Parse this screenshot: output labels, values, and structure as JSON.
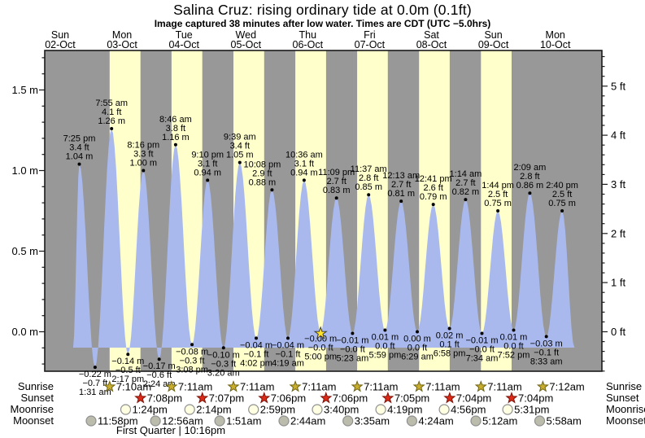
{
  "title": "Salina Cruz: rising  ordinary tide at 0.0m (0.1ft)",
  "subtitle": "Image captured 38 minutes after low water. Times are CDT (UTC −5.0hrs)",
  "row_labels": {
    "sunrise": "Sunrise",
    "sunset": "Sunset",
    "moonrise": "Moonrise",
    "moonset": "Moonset"
  },
  "moon_phase_note": "First Quarter | 10:16pm",
  "colors": {
    "night_band": "#989898",
    "day_band": "#ffffcc",
    "tide_fill": "#a9b9ee",
    "day_label": "#e84141",
    "frame": "#1a1a1a",
    "sunrise_star": "#c9ae2e",
    "sunrise_star_stroke": "#6f6414",
    "sunset_star": "#dd2a16",
    "sunset_star_stroke": "#7c150c",
    "moonrise_fill": "#ffffe2",
    "moonrise_stroke": "#8f8f8f",
    "moonset_fill": "#bcbcac",
    "moonset_stroke": "#8f8f8f",
    "marker_fill": "#ffe12b",
    "marker_stroke": "#3a3a3a"
  },
  "chart_data": {
    "type": "area",
    "title": "Salina Cruz: rising  ordinary tide at 0.0m (0.1ft)",
    "subtitle": "Image captured 38 minutes after low water. Times are CDT (UTC −5.0hrs)",
    "ylabel_left_unit": "m",
    "ylabel_right_unit": "ft",
    "ylim_m": [
      -0.25,
      1.75
    ],
    "grid": false,
    "days": [
      {
        "name": "Sun",
        "date": "02-Oct",
        "noon_t": 12
      },
      {
        "name": "Mon",
        "date": "03-Oct",
        "noon_t": 36
      },
      {
        "name": "Tue",
        "date": "04-Oct",
        "noon_t": 60
      },
      {
        "name": "Wed",
        "date": "05-Oct",
        "noon_t": 84
      },
      {
        "name": "Thu",
        "date": "06-Oct",
        "noon_t": 108
      },
      {
        "name": "Fri",
        "date": "07-Oct",
        "noon_t": 132
      },
      {
        "name": "Sat",
        "date": "08-Oct",
        "noon_t": 156
      },
      {
        "name": "Sun",
        "date": "09-Oct",
        "noon_t": 180
      },
      {
        "name": "Mon",
        "date": "10-Oct",
        "noon_t": 204
      }
    ],
    "y_axis_left": [
      {
        "v": 0.0,
        "label": "0.0 m"
      },
      {
        "v": 0.5,
        "label": "0.5 m"
      },
      {
        "v": 1.0,
        "label": "1.0 m"
      },
      {
        "v": 1.5,
        "label": "1.5 m"
      }
    ],
    "y_axis_right": [
      {
        "ft": 0,
        "label": "0 ft"
      },
      {
        "ft": 1,
        "label": "1 ft"
      },
      {
        "ft": 2,
        "label": "2 ft"
      },
      {
        "ft": 3,
        "label": "3 ft"
      },
      {
        "ft": 4,
        "label": "4 ft"
      },
      {
        "ft": 5,
        "label": "5 ft"
      }
    ],
    "tide_events": [
      {
        "kind": "high",
        "time": "7:25 pm",
        "ft": "3.4 ft",
        "m": "1.04 m",
        "v": 1.04,
        "t": 19.42
      },
      {
        "kind": "low",
        "time": "1:31 am",
        "ft": "−0.7 ft",
        "m": "−0.22 m",
        "v": -0.22,
        "t": 25.52
      },
      {
        "kind": "high",
        "time": "7:55 am",
        "ft": "4.1 ft",
        "m": "1.26 m",
        "v": 1.26,
        "t": 31.92
      },
      {
        "kind": "low",
        "time": "2:17 pm",
        "ft": "−0.5 ft",
        "m": "−0.14 m",
        "v": -0.14,
        "t": 38.28
      },
      {
        "kind": "high",
        "time": "8:16 pm",
        "ft": "3.3 ft",
        "m": "1.00 m",
        "v": 1.0,
        "t": 44.27
      },
      {
        "kind": "low",
        "time": "2:24 am",
        "ft": "−0.6 ft",
        "m": "−0.17 m",
        "v": -0.17,
        "t": 50.4
      },
      {
        "kind": "high",
        "time": "8:46 am",
        "ft": "3.8 ft",
        "m": "1.16 m",
        "v": 1.16,
        "t": 56.77
      },
      {
        "kind": "low",
        "time": "3:08 pm",
        "ft": "−0.3 ft",
        "m": "−0.08 m",
        "v": -0.08,
        "t": 63.13
      },
      {
        "kind": "high",
        "time": "9:10 pm",
        "ft": "3.1 ft",
        "m": "0.94 m",
        "v": 0.94,
        "t": 69.17
      },
      {
        "kind": "low",
        "time": "3:20 am",
        "ft": "−0.3 ft",
        "m": "−0.10 m",
        "v": -0.1,
        "t": 75.33
      },
      {
        "kind": "high",
        "time": "9:39 am",
        "ft": "3.4 ft",
        "m": "1.05 m",
        "v": 1.05,
        "t": 81.65
      },
      {
        "kind": "low",
        "time": "4:02 pm",
        "ft": "−0.1 ft",
        "m": "−0.04 m",
        "v": -0.04,
        "t": 88.03
      },
      {
        "kind": "high",
        "time": "10:08 pm",
        "ft": "2.9 ft",
        "m": "0.88 m",
        "v": 0.88,
        "t": 94.13,
        "ldx": -12
      },
      {
        "kind": "low",
        "time": "4:19 am",
        "ft": "−0.1 ft",
        "m": "−0.04 m",
        "v": -0.04,
        "t": 100.32
      },
      {
        "kind": "high",
        "time": "10:36 am",
        "ft": "3.1 ft",
        "m": "0.94 m",
        "v": 0.94,
        "t": 106.6
      },
      {
        "kind": "low",
        "time": "5:00 pm",
        "ft": "−0.0 ft",
        "m": "−0.00 m",
        "v": 0.0,
        "t": 113.0,
        "current": true
      },
      {
        "kind": "high",
        "time": "11:09 pm",
        "ft": "2.7 ft",
        "m": "0.83 m",
        "v": 0.83,
        "t": 119.15
      },
      {
        "kind": "low",
        "time": "5:23 am",
        "ft": "−0.0 ft",
        "m": "−0.01 m",
        "v": -0.01,
        "t": 125.38
      },
      {
        "kind": "high",
        "time": "11:37 am",
        "ft": "2.8 ft",
        "m": "0.85 m",
        "v": 0.85,
        "t": 131.62
      },
      {
        "kind": "low",
        "time": "5:59 pm",
        "ft": "0.0 ft",
        "m": "0.01 m",
        "v": 0.01,
        "t": 137.98
      },
      {
        "kind": "high",
        "time": "12:13 am",
        "ft": "2.7 ft",
        "m": "0.81 m",
        "v": 0.81,
        "t": 144.22
      },
      {
        "kind": "low",
        "time": "6:29 am",
        "ft": "0.0 ft",
        "m": "0.00 m",
        "v": 0.0,
        "t": 150.48
      },
      {
        "kind": "high",
        "time": "12:41 pm",
        "ft": "2.6 ft",
        "m": "0.79 m",
        "v": 0.79,
        "t": 156.68
      },
      {
        "kind": "low",
        "time": "6:58 pm",
        "ft": "0.1 ft",
        "m": "0.02 m",
        "v": 0.02,
        "t": 162.97
      },
      {
        "kind": "high",
        "time": "1:14 am",
        "ft": "2.7 ft",
        "m": "0.82 m",
        "v": 0.82,
        "t": 169.23
      },
      {
        "kind": "low",
        "time": "7:34 am",
        "ft": "−0.0 ft",
        "m": "−0.01 m",
        "v": -0.01,
        "t": 175.57
      },
      {
        "kind": "high",
        "time": "1:44 pm",
        "ft": "2.5 ft",
        "m": "0.75 m",
        "v": 0.75,
        "t": 181.73
      },
      {
        "kind": "low",
        "time": "7:52 pm",
        "ft": "0.0 ft",
        "m": "0.01 m",
        "v": 0.01,
        "t": 187.87
      },
      {
        "kind": "high",
        "time": "2:09 am",
        "ft": "2.8 ft",
        "m": "0.86 m",
        "v": 0.86,
        "t": 194.15
      },
      {
        "kind": "low",
        "time": "8:33 am",
        "ft": "−0.1 ft",
        "m": "−0.03 m",
        "v": -0.03,
        "t": 200.55
      },
      {
        "kind": "high",
        "time": "2:40 pm",
        "ft": "2.5 ft",
        "m": "0.75 m",
        "v": 0.75,
        "t": 206.67
      }
    ],
    "curve_edges": {
      "start_t": 17.0,
      "start_v": -0.1,
      "end_t": 211.5,
      "end_v": -0.1
    },
    "sun_moon": {
      "sunrise": [
        {
          "label": "7:10am",
          "t": 31.17
        },
        {
          "label": "7:11am",
          "t": 55.18
        },
        {
          "label": "7:11am",
          "t": 79.18
        },
        {
          "label": "7:11am",
          "t": 103.18
        },
        {
          "label": "7:11am",
          "t": 127.18
        },
        {
          "label": "7:11am",
          "t": 151.18
        },
        {
          "label": "7:11am",
          "t": 175.18
        },
        {
          "label": "7:12am",
          "t": 199.2
        }
      ],
      "sunset": [
        {
          "label": "7:08pm",
          "t": 43.13
        },
        {
          "label": "7:07pm",
          "t": 67.12
        },
        {
          "label": "7:06pm",
          "t": 91.1
        },
        {
          "label": "7:06pm",
          "t": 115.1
        },
        {
          "label": "7:05pm",
          "t": 139.08
        },
        {
          "label": "7:04pm",
          "t": 163.07
        },
        {
          "label": "7:04pm",
          "t": 187.07
        }
      ],
      "moonrise": [
        {
          "label": "1:24pm",
          "t": 37.4
        },
        {
          "label": "2:14pm",
          "t": 62.23
        },
        {
          "label": "2:59pm",
          "t": 86.98
        },
        {
          "label": "3:40pm",
          "t": 111.67
        },
        {
          "label": "4:19pm",
          "t": 136.32
        },
        {
          "label": "4:56pm",
          "t": 160.93
        },
        {
          "label": "5:31pm",
          "t": 185.52
        }
      ],
      "moonset": [
        {
          "label": "11:58pm",
          "t": 23.97
        },
        {
          "label": "12:56am",
          "t": 48.93
        },
        {
          "label": "1:51am",
          "t": 73.85
        },
        {
          "label": "2:44am",
          "t": 98.73
        },
        {
          "label": "3:35am",
          "t": 123.58
        },
        {
          "label": "4:24am",
          "t": 148.4
        },
        {
          "label": "5:12am",
          "t": 173.2
        },
        {
          "label": "5:58am",
          "t": 197.97
        }
      ]
    }
  }
}
